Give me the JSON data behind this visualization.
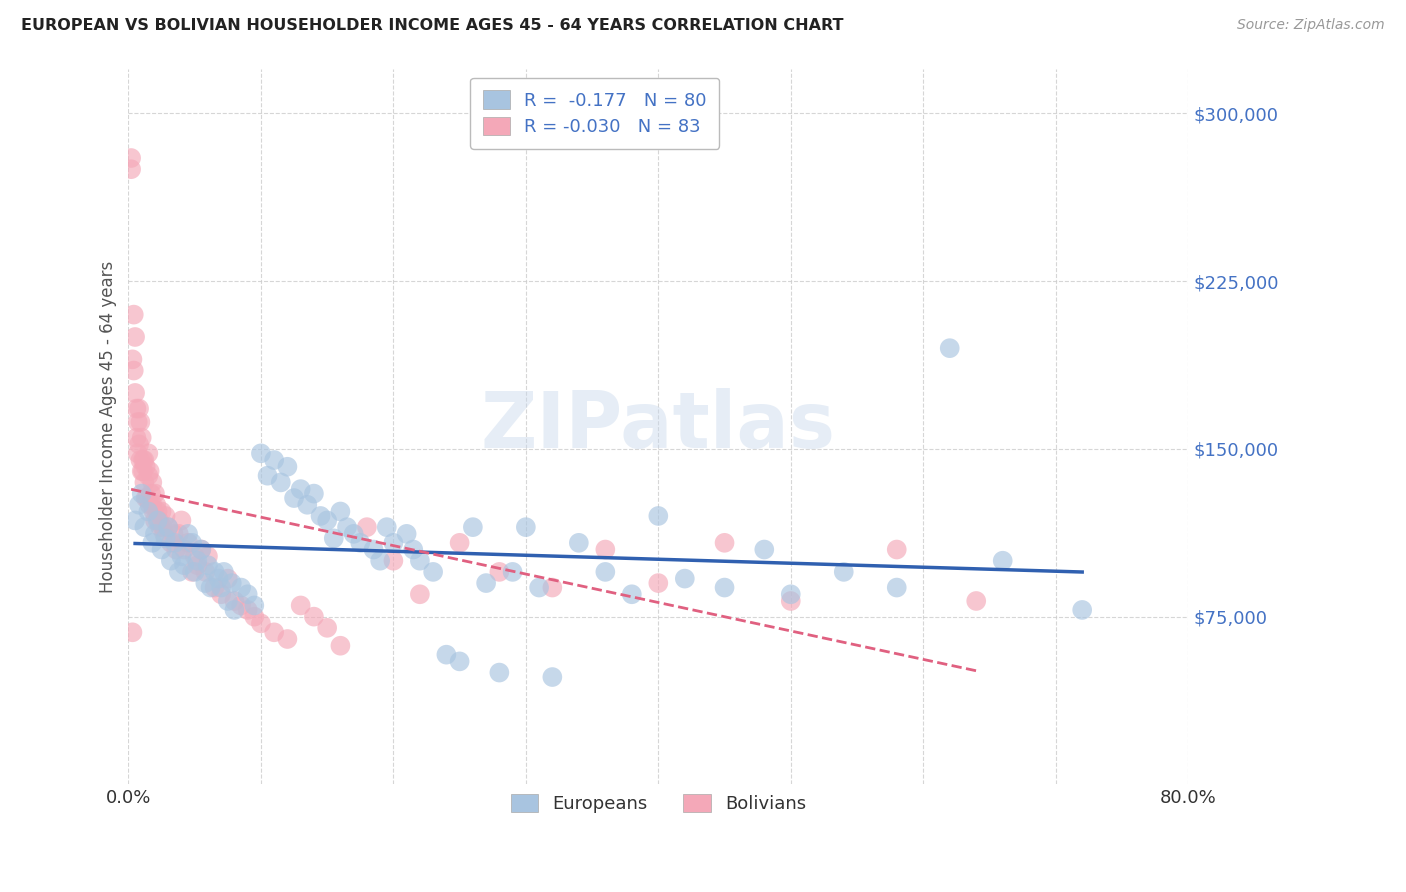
{
  "title": "EUROPEAN VS BOLIVIAN HOUSEHOLDER INCOME AGES 45 - 64 YEARS CORRELATION CHART",
  "source": "Source: ZipAtlas.com",
  "ylabel": "Householder Income Ages 45 - 64 years",
  "xlim": [
    0,
    0.8
  ],
  "ylim": [
    0,
    320000
  ],
  "yticks": [
    75000,
    150000,
    225000,
    300000
  ],
  "ytick_labels": [
    "$75,000",
    "$150,000",
    "$225,000",
    "$300,000"
  ],
  "xticks": [
    0.0,
    0.1,
    0.2,
    0.3,
    0.4,
    0.5,
    0.6,
    0.7,
    0.8
  ],
  "xtick_labels": [
    "0.0%",
    "",
    "",
    "",
    "",
    "",
    "",
    "",
    "80.0%"
  ],
  "background_color": "#ffffff",
  "grid_color": "#cccccc",
  "watermark": "ZIPatlas",
  "europeans_color": "#a8c4e0",
  "bolivians_color": "#f4a8b8",
  "europeans_line_color": "#3060b0",
  "bolivians_line_color": "#e06080",
  "R_european": -0.177,
  "N_european": 80,
  "R_bolivian": -0.03,
  "N_bolivian": 83,
  "europeans_x": [
    0.005,
    0.008,
    0.01,
    0.012,
    0.015,
    0.018,
    0.02,
    0.022,
    0.025,
    0.028,
    0.03,
    0.032,
    0.035,
    0.038,
    0.04,
    0.042,
    0.045,
    0.048,
    0.05,
    0.052,
    0.055,
    0.058,
    0.06,
    0.062,
    0.065,
    0.068,
    0.07,
    0.072,
    0.075,
    0.078,
    0.08,
    0.085,
    0.09,
    0.095,
    0.1,
    0.105,
    0.11,
    0.115,
    0.12,
    0.125,
    0.13,
    0.135,
    0.14,
    0.145,
    0.15,
    0.155,
    0.16,
    0.165,
    0.17,
    0.175,
    0.185,
    0.19,
    0.195,
    0.2,
    0.21,
    0.215,
    0.22,
    0.23,
    0.24,
    0.25,
    0.26,
    0.27,
    0.28,
    0.29,
    0.3,
    0.31,
    0.32,
    0.34,
    0.36,
    0.38,
    0.4,
    0.42,
    0.45,
    0.48,
    0.5,
    0.54,
    0.58,
    0.62,
    0.66,
    0.72
  ],
  "europeans_y": [
    118000,
    125000,
    130000,
    115000,
    122000,
    108000,
    112000,
    118000,
    105000,
    110000,
    115000,
    100000,
    108000,
    95000,
    102000,
    98000,
    112000,
    108000,
    95000,
    100000,
    105000,
    90000,
    98000,
    88000,
    95000,
    92000,
    88000,
    95000,
    82000,
    90000,
    78000,
    88000,
    85000,
    80000,
    148000,
    138000,
    145000,
    135000,
    142000,
    128000,
    132000,
    125000,
    130000,
    120000,
    118000,
    110000,
    122000,
    115000,
    112000,
    108000,
    105000,
    100000,
    115000,
    108000,
    112000,
    105000,
    100000,
    95000,
    58000,
    55000,
    115000,
    90000,
    50000,
    95000,
    115000,
    88000,
    48000,
    108000,
    95000,
    85000,
    120000,
    92000,
    88000,
    105000,
    85000,
    95000,
    88000,
    195000,
    100000,
    78000
  ],
  "bolivians_x": [
    0.002,
    0.002,
    0.003,
    0.004,
    0.004,
    0.005,
    0.005,
    0.006,
    0.006,
    0.007,
    0.007,
    0.008,
    0.008,
    0.009,
    0.009,
    0.01,
    0.01,
    0.011,
    0.011,
    0.012,
    0.012,
    0.013,
    0.013,
    0.014,
    0.015,
    0.015,
    0.016,
    0.016,
    0.017,
    0.018,
    0.018,
    0.019,
    0.02,
    0.02,
    0.021,
    0.022,
    0.023,
    0.024,
    0.025,
    0.026,
    0.027,
    0.028,
    0.03,
    0.032,
    0.034,
    0.036,
    0.038,
    0.04,
    0.042,
    0.045,
    0.048,
    0.05,
    0.052,
    0.055,
    0.058,
    0.06,
    0.065,
    0.07,
    0.075,
    0.08,
    0.085,
    0.09,
    0.095,
    0.1,
    0.11,
    0.12,
    0.13,
    0.14,
    0.15,
    0.16,
    0.18,
    0.2,
    0.22,
    0.25,
    0.28,
    0.32,
    0.36,
    0.4,
    0.45,
    0.5,
    0.58,
    0.64,
    0.003
  ],
  "bolivians_y": [
    275000,
    280000,
    190000,
    185000,
    210000,
    175000,
    200000,
    155000,
    168000,
    148000,
    162000,
    152000,
    168000,
    145000,
    162000,
    140000,
    155000,
    145000,
    140000,
    135000,
    145000,
    128000,
    142000,
    128000,
    138000,
    148000,
    125000,
    140000,
    130000,
    125000,
    135000,
    122000,
    130000,
    118000,
    125000,
    122000,
    118000,
    115000,
    122000,
    115000,
    112000,
    120000,
    115000,
    108000,
    112000,
    105000,
    112000,
    118000,
    105000,
    108000,
    95000,
    102000,
    98000,
    105000,
    95000,
    102000,
    88000,
    85000,
    92000,
    82000,
    80000,
    78000,
    75000,
    72000,
    68000,
    65000,
    80000,
    75000,
    70000,
    62000,
    115000,
    100000,
    85000,
    108000,
    95000,
    88000,
    105000,
    90000,
    108000,
    82000,
    105000,
    82000,
    68000
  ]
}
